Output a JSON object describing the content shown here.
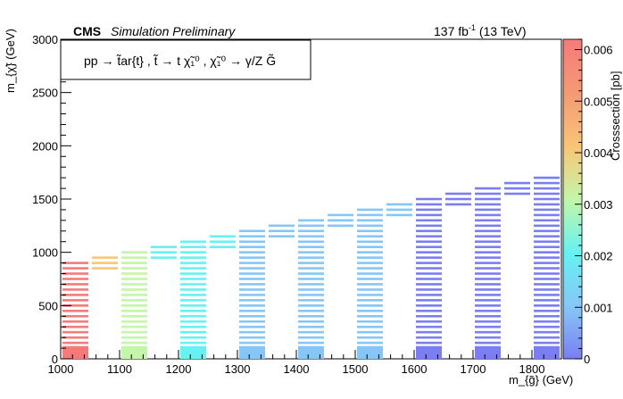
{
  "header": {
    "experiment": "CMS",
    "status": "Simulation Preliminary",
    "lumi_value": "137 fb",
    "lumi_exp": "-1",
    "lumi_energy": " (13 TeV)"
  },
  "legend": {
    "process": "pp → t̃ar{t}  , t̃ → t χ̃₁⁰ , χ̃₁⁰ → γ/Z G̃"
  },
  "chart_data": {
    "type": "heatmap",
    "xlabel": "m_{g̃} (GeV)",
    "ylabel": "m_{χ̃} (GeV)",
    "zlabel": "Crosssection [pb]",
    "xlim": [
      1000,
      1850
    ],
    "ylim": [
      0,
      3000
    ],
    "zlim": [
      0,
      0.0062
    ],
    "x_ticks": [
      1000,
      1100,
      1200,
      1300,
      1400,
      1500,
      1600,
      1700,
      1800
    ],
    "y_ticks": [
      0,
      500,
      1000,
      1500,
      2000,
      2500,
      3000
    ],
    "z_ticks": [
      0,
      0.001,
      0.002,
      0.003,
      0.004,
      0.005,
      0.006
    ],
    "z_tick_labels": [
      "0",
      "0.001",
      "0.002",
      "0.003",
      "0.004",
      "0.005",
      "0.006"
    ],
    "colors": {
      "c0": "#7a7ef2",
      "c1": "#86c6f7",
      "c2": "#66f1f2",
      "c3": "#c3f6a8",
      "c4": "#f8c676",
      "c5": "#f59a74",
      "c6": "#f57a7a"
    },
    "columns": [
      {
        "x": 1000,
        "y_max": 900,
        "z": 0.0062,
        "low_z": 0.0062
      },
      {
        "x": 1050,
        "y_min": 850,
        "y_max": 950,
        "z": 0.0042
      },
      {
        "x": 1100,
        "y_max": 1000,
        "z": 0.003,
        "low_z": 0.003
      },
      {
        "x": 1150,
        "y_min": 950,
        "y_max": 1050,
        "z": 0.0021
      },
      {
        "x": 1200,
        "y_max": 1100,
        "z": 0.0019,
        "low_z": 0.0019
      },
      {
        "x": 1250,
        "y_min": 1050,
        "y_max": 1150,
        "z": 0.0016
      },
      {
        "x": 1300,
        "y_max": 1200,
        "z": 0.0015,
        "low_z": 0.0008
      },
      {
        "x": 1350,
        "y_min": 1150,
        "y_max": 1250,
        "z": 0.0012
      },
      {
        "x": 1400,
        "y_max": 1300,
        "z": 0.0007,
        "low_z": 0.0007
      },
      {
        "x": 1450,
        "y_min": 1250,
        "y_max": 1350,
        "z": 0.0007
      },
      {
        "x": 1500,
        "y_max": 1400,
        "z": 0.0006,
        "low_z": 0.0006
      },
      {
        "x": 1550,
        "y_min": 1350,
        "y_max": 1450,
        "z": 0.0006
      },
      {
        "x": 1600,
        "y_max": 1500,
        "z": 0.0005,
        "low_z": 0.0005
      },
      {
        "x": 1650,
        "y_min": 1450,
        "y_max": 1550,
        "z": 0.0005
      },
      {
        "x": 1700,
        "y_max": 1600,
        "z": 0.0005,
        "low_z": 0.0005
      },
      {
        "x": 1750,
        "y_min": 1550,
        "y_max": 1650,
        "z": 0.0004
      },
      {
        "x": 1800,
        "y_max": 1700,
        "z": 0.0004,
        "low_z": 0.0004
      }
    ]
  }
}
